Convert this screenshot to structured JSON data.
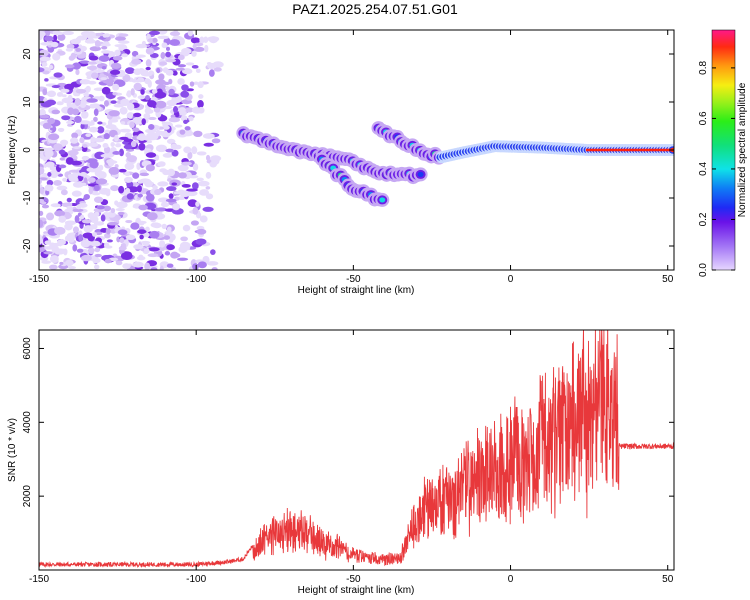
{
  "title": "PAZ1.2025.254.07.51.G01",
  "chart_data": [
    {
      "type": "heatmap",
      "xlabel": "Height of straight line (km)",
      "ylabel": "Frequency (Hz)",
      "xlim": [
        -150,
        52
      ],
      "ylim": [
        -25,
        25
      ],
      "x_ticks": [
        -150,
        -100,
        -50,
        0,
        50
      ],
      "y_ticks": [
        -20,
        -10,
        0,
        10,
        20
      ],
      "colorbar": {
        "label": "Normalized spectral amplitude",
        "range": [
          0,
          0.95
        ],
        "ticks": [
          0.0,
          0.2,
          0.4,
          0.6,
          0.8
        ],
        "tick_labels": [
          "0.0",
          "0.2",
          "0.4",
          "0.6",
          "0.8"
        ]
      },
      "ridges": [
        {
          "name": "main-branch",
          "points": [
            [
              -85,
              3.5
            ],
            [
              -70,
              0
            ],
            [
              -55,
              -1.5
            ],
            [
              -40,
              -5
            ],
            [
              -28,
              -5.5
            ]
          ]
        },
        {
          "name": "lower-branch",
          "points": [
            [
              -60,
              -2
            ],
            [
              -50,
              -8
            ],
            [
              -45,
              -9.5
            ],
            [
              -40,
              -11
            ]
          ]
        },
        {
          "name": "upper-branch",
          "points": [
            [
              -42,
              4.5
            ],
            [
              -35,
              2
            ],
            [
              -28,
              -0.5
            ],
            [
              -22,
              -1.5
            ]
          ]
        },
        {
          "name": "carrier",
          "points": [
            [
              -22,
              -1.5
            ],
            [
              -15,
              -0.5
            ],
            [
              -5,
              0.8
            ],
            [
              10,
              0.5
            ],
            [
              25,
              0
            ],
            [
              52,
              0
            ]
          ]
        }
      ]
    },
    {
      "type": "line",
      "xlabel": "Height of straight line (km)",
      "ylabel": "SNR (10 * v/v)",
      "xlim": [
        -150,
        52
      ],
      "ylim": [
        0,
        6500
      ],
      "x_ticks": [
        -150,
        -100,
        -50,
        0,
        50
      ],
      "y_ticks": [
        2000,
        4000,
        6000
      ],
      "series": [
        {
          "name": "SNR",
          "color": "#e8383b",
          "envelope": [
            [
              -150,
              150
            ],
            [
              -100,
              150
            ],
            [
              -90,
              220
            ],
            [
              -85,
              300
            ],
            [
              -80,
              900
            ],
            [
              -75,
              1300
            ],
            [
              -70,
              1400
            ],
            [
              -65,
              1300
            ],
            [
              -60,
              1000
            ],
            [
              -55,
              800
            ],
            [
              -50,
              550
            ],
            [
              -45,
              420
            ],
            [
              -40,
              380
            ],
            [
              -35,
              450
            ],
            [
              -32,
              1400
            ],
            [
              -28,
              2000
            ],
            [
              -25,
              2300
            ],
            [
              -20,
              2600
            ],
            [
              -15,
              2900
            ],
            [
              -10,
              3400
            ],
            [
              -5,
              3600
            ],
            [
              0,
              3900
            ],
            [
              5,
              4200
            ],
            [
              10,
              4500
            ],
            [
              15,
              4900
            ],
            [
              20,
              5300
            ],
            [
              25,
              5600
            ],
            [
              30,
              5800
            ],
            [
              34,
              5950
            ],
            [
              34.5,
              3350
            ],
            [
              52,
              3350
            ]
          ]
        }
      ]
    }
  ]
}
